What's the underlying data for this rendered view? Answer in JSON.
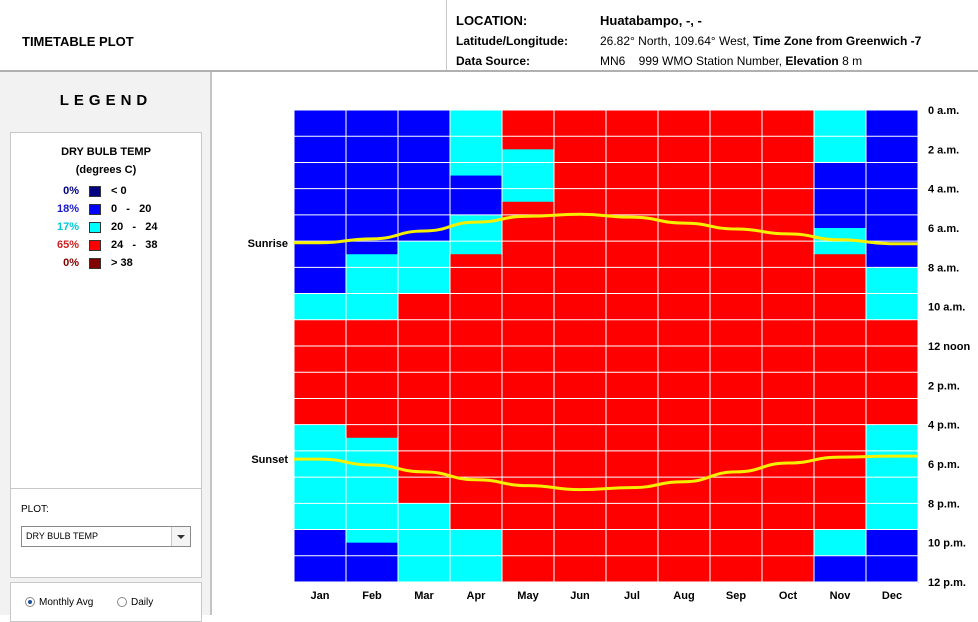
{
  "header": {
    "app_title": "TIMETABLE PLOT",
    "location_label": "LOCATION:",
    "location_value": "Huatabampo, -, -",
    "latlon_label": "Latitude/Longitude:",
    "latlon_value": "26.82° North, 109.64° West,",
    "tz_label": "Time Zone from Greenwich",
    "tz_value": "-7",
    "source_label": "Data Source:",
    "source_value": "MN6    999 WMO Station Number,",
    "elevation_label": "Elevation",
    "elevation_value": "8 m"
  },
  "legend": {
    "title": "LEGEND",
    "variable": "DRY BULB TEMP",
    "unit": "(degrees C)",
    "items": [
      {
        "pct": "0%",
        "range": "< 0",
        "color": "#000080",
        "text_color": "#000080"
      },
      {
        "pct": "18%",
        "range": "0   -   20",
        "color": "#0000ff",
        "text_color": "#1a1acc"
      },
      {
        "pct": "17%",
        "range": "20   -   24",
        "color": "#00ffff",
        "text_color": "#00c8d8"
      },
      {
        "pct": "65%",
        "range": "24   -   38",
        "color": "#ff0000",
        "text_color": "#cc2222"
      },
      {
        "pct": "0%",
        "range": "> 38",
        "color": "#800000",
        "text_color": "#800000"
      }
    ]
  },
  "controls": {
    "plot_label": "PLOT:",
    "plot_value": "DRY BULB TEMP",
    "monthly_label": "Monthly Avg",
    "daily_label": "Daily",
    "selected_mode": "Monthly Avg"
  },
  "chart_data": {
    "type": "heatmap",
    "categories": [
      "Jan",
      "Feb",
      "Mar",
      "Apr",
      "May",
      "Jun",
      "Jul",
      "Aug",
      "Sep",
      "Oct",
      "Nov",
      "Dec"
    ],
    "time_labels": [
      "0 a.m.",
      "2 a.m.",
      "4 a.m.",
      "6 a.m.",
      "8 a.m.",
      "10 a.m.",
      "12 noon",
      "2 p.m.",
      "4 p.m.",
      "6 p.m.",
      "8 p.m.",
      "10 p.m.",
      "12 p.m."
    ],
    "hours_per_cell": 2,
    "sunrise_label": "Sunrise",
    "sunset_label": "Sunset",
    "class_colors": [
      "#000080",
      "#0000ff",
      "#00ffff",
      "#ff0000",
      "#800000"
    ],
    "cells": [
      [
        1,
        1,
        1,
        2,
        3,
        3,
        3,
        3,
        3,
        3,
        2,
        1
      ],
      [
        1,
        1,
        1,
        2,
        3,
        3,
        3,
        3,
        3,
        3,
        2,
        1
      ],
      [
        1,
        1,
        1,
        2,
        3,
        3,
        3,
        3,
        3,
        3,
        2,
        1
      ],
      [
        1,
        1,
        1,
        2,
        2,
        3,
        3,
        3,
        3,
        3,
        2,
        1
      ],
      [
        1,
        1,
        1,
        2,
        2,
        3,
        3,
        3,
        3,
        3,
        1,
        1
      ],
      [
        1,
        1,
        1,
        1,
        2,
        3,
        3,
        3,
        3,
        3,
        1,
        1
      ],
      [
        1,
        1,
        1,
        1,
        2,
        3,
        3,
        3,
        3,
        3,
        1,
        1
      ],
      [
        1,
        1,
        1,
        1,
        3,
        3,
        3,
        3,
        3,
        3,
        1,
        1
      ],
      [
        1,
        1,
        1,
        2,
        3,
        3,
        3,
        3,
        3,
        3,
        1,
        1
      ],
      [
        1,
        1,
        1,
        2,
        3,
        3,
        3,
        3,
        3,
        3,
        2,
        1
      ],
      [
        1,
        1,
        2,
        2,
        3,
        3,
        3,
        3,
        3,
        3,
        2,
        1
      ],
      [
        1,
        2,
        2,
        3,
        3,
        3,
        3,
        3,
        3,
        3,
        3,
        1
      ],
      [
        1,
        2,
        2,
        3,
        3,
        3,
        3,
        3,
        3,
        3,
        3,
        2
      ],
      [
        1,
        2,
        2,
        3,
        3,
        3,
        3,
        3,
        3,
        3,
        3,
        2
      ],
      [
        2,
        2,
        3,
        3,
        3,
        3,
        3,
        3,
        3,
        3,
        3,
        2
      ],
      [
        2,
        2,
        3,
        3,
        3,
        3,
        3,
        3,
        3,
        3,
        3,
        2
      ],
      [
        3,
        3,
        3,
        3,
        3,
        3,
        3,
        3,
        3,
        3,
        3,
        3
      ],
      [
        3,
        3,
        3,
        3,
        3,
        3,
        3,
        3,
        3,
        3,
        3,
        3
      ],
      [
        3,
        3,
        3,
        3,
        3,
        3,
        3,
        3,
        3,
        3,
        3,
        3
      ],
      [
        3,
        3,
        3,
        3,
        3,
        3,
        3,
        3,
        3,
        3,
        3,
        3
      ],
      [
        3,
        3,
        3,
        3,
        3,
        3,
        3,
        3,
        3,
        3,
        3,
        3
      ],
      [
        3,
        3,
        3,
        3,
        3,
        3,
        3,
        3,
        3,
        3,
        3,
        3
      ],
      [
        3,
        3,
        3,
        3,
        3,
        3,
        3,
        3,
        3,
        3,
        3,
        3
      ],
      [
        3,
        3,
        3,
        3,
        3,
        3,
        3,
        3,
        3,
        3,
        3,
        3
      ],
      [
        2,
        3,
        3,
        3,
        3,
        3,
        3,
        3,
        3,
        3,
        3,
        2
      ],
      [
        2,
        2,
        3,
        3,
        3,
        3,
        3,
        3,
        3,
        3,
        3,
        2
      ],
      [
        2,
        2,
        3,
        3,
        3,
        3,
        3,
        3,
        3,
        3,
        3,
        2
      ],
      [
        2,
        2,
        3,
        3,
        3,
        3,
        3,
        3,
        3,
        3,
        3,
        2
      ],
      [
        2,
        2,
        3,
        3,
        3,
        3,
        3,
        3,
        3,
        3,
        3,
        2
      ],
      [
        2,
        2,
        3,
        3,
        3,
        3,
        3,
        3,
        3,
        3,
        3,
        2
      ],
      [
        2,
        2,
        2,
        3,
        3,
        3,
        3,
        3,
        3,
        3,
        3,
        2
      ],
      [
        2,
        2,
        2,
        3,
        3,
        3,
        3,
        3,
        3,
        3,
        3,
        2
      ],
      [
        1,
        2,
        2,
        2,
        3,
        3,
        3,
        3,
        3,
        3,
        2,
        1
      ],
      [
        1,
        1,
        2,
        2,
        3,
        3,
        3,
        3,
        3,
        3,
        2,
        1
      ],
      [
        1,
        1,
        2,
        2,
        3,
        3,
        3,
        3,
        3,
        3,
        1,
        1
      ],
      [
        1,
        1,
        2,
        2,
        3,
        3,
        3,
        3,
        3,
        3,
        1,
        1
      ]
    ],
    "sunrise_hours": [
      6.75,
      6.55,
      6.15,
      5.7,
      5.4,
      5.3,
      5.45,
      5.75,
      6.05,
      6.3,
      6.6,
      6.8
    ],
    "sunset_hours": [
      17.75,
      18.05,
      18.4,
      18.8,
      19.1,
      19.3,
      19.2,
      18.9,
      18.4,
      17.95,
      17.65,
      17.6
    ],
    "xlabel": "",
    "ylabel": ""
  }
}
